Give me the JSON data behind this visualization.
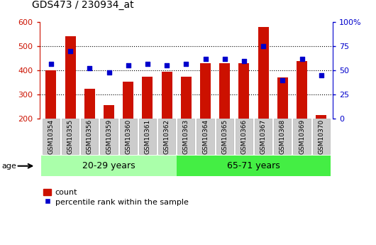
{
  "title": "GDS473 / 230934_at",
  "categories": [
    "GSM10354",
    "GSM10355",
    "GSM10356",
    "GSM10359",
    "GSM10360",
    "GSM10361",
    "GSM10362",
    "GSM10363",
    "GSM10364",
    "GSM10365",
    "GSM10366",
    "GSM10367",
    "GSM10368",
    "GSM10369",
    "GSM10370"
  ],
  "counts": [
    400,
    540,
    323,
    258,
    355,
    375,
    395,
    375,
    430,
    430,
    430,
    580,
    370,
    440,
    215
  ],
  "percentiles": [
    57,
    70,
    52,
    48,
    55,
    57,
    55,
    57,
    62,
    62,
    60,
    75,
    40,
    62,
    45
  ],
  "ymin": 200,
  "ymax": 600,
  "yticks_left": [
    200,
    300,
    400,
    500,
    600
  ],
  "yticks_right": [
    0,
    25,
    50,
    75,
    100
  ],
  "ytick_labels_right": [
    "0",
    "25",
    "50",
    "75",
    "100%"
  ],
  "bar_color": "#cc1100",
  "marker_color": "#0000cc",
  "group1_label": "20-29 years",
  "group2_label": "65-71 years",
  "group1_count": 7,
  "group2_count": 8,
  "age_label": "age",
  "legend_bar": "count",
  "legend_marker": "percentile rank within the sample",
  "left_axis_color": "#cc1100",
  "right_axis_color": "#0000cc",
  "bg_color": "#ffffff",
  "bar_width": 0.55,
  "group1_bg": "#aaffaa",
  "group2_bg": "#44ee44",
  "tick_bg": "#cccccc",
  "grid_yticks": [
    300,
    400,
    500
  ]
}
